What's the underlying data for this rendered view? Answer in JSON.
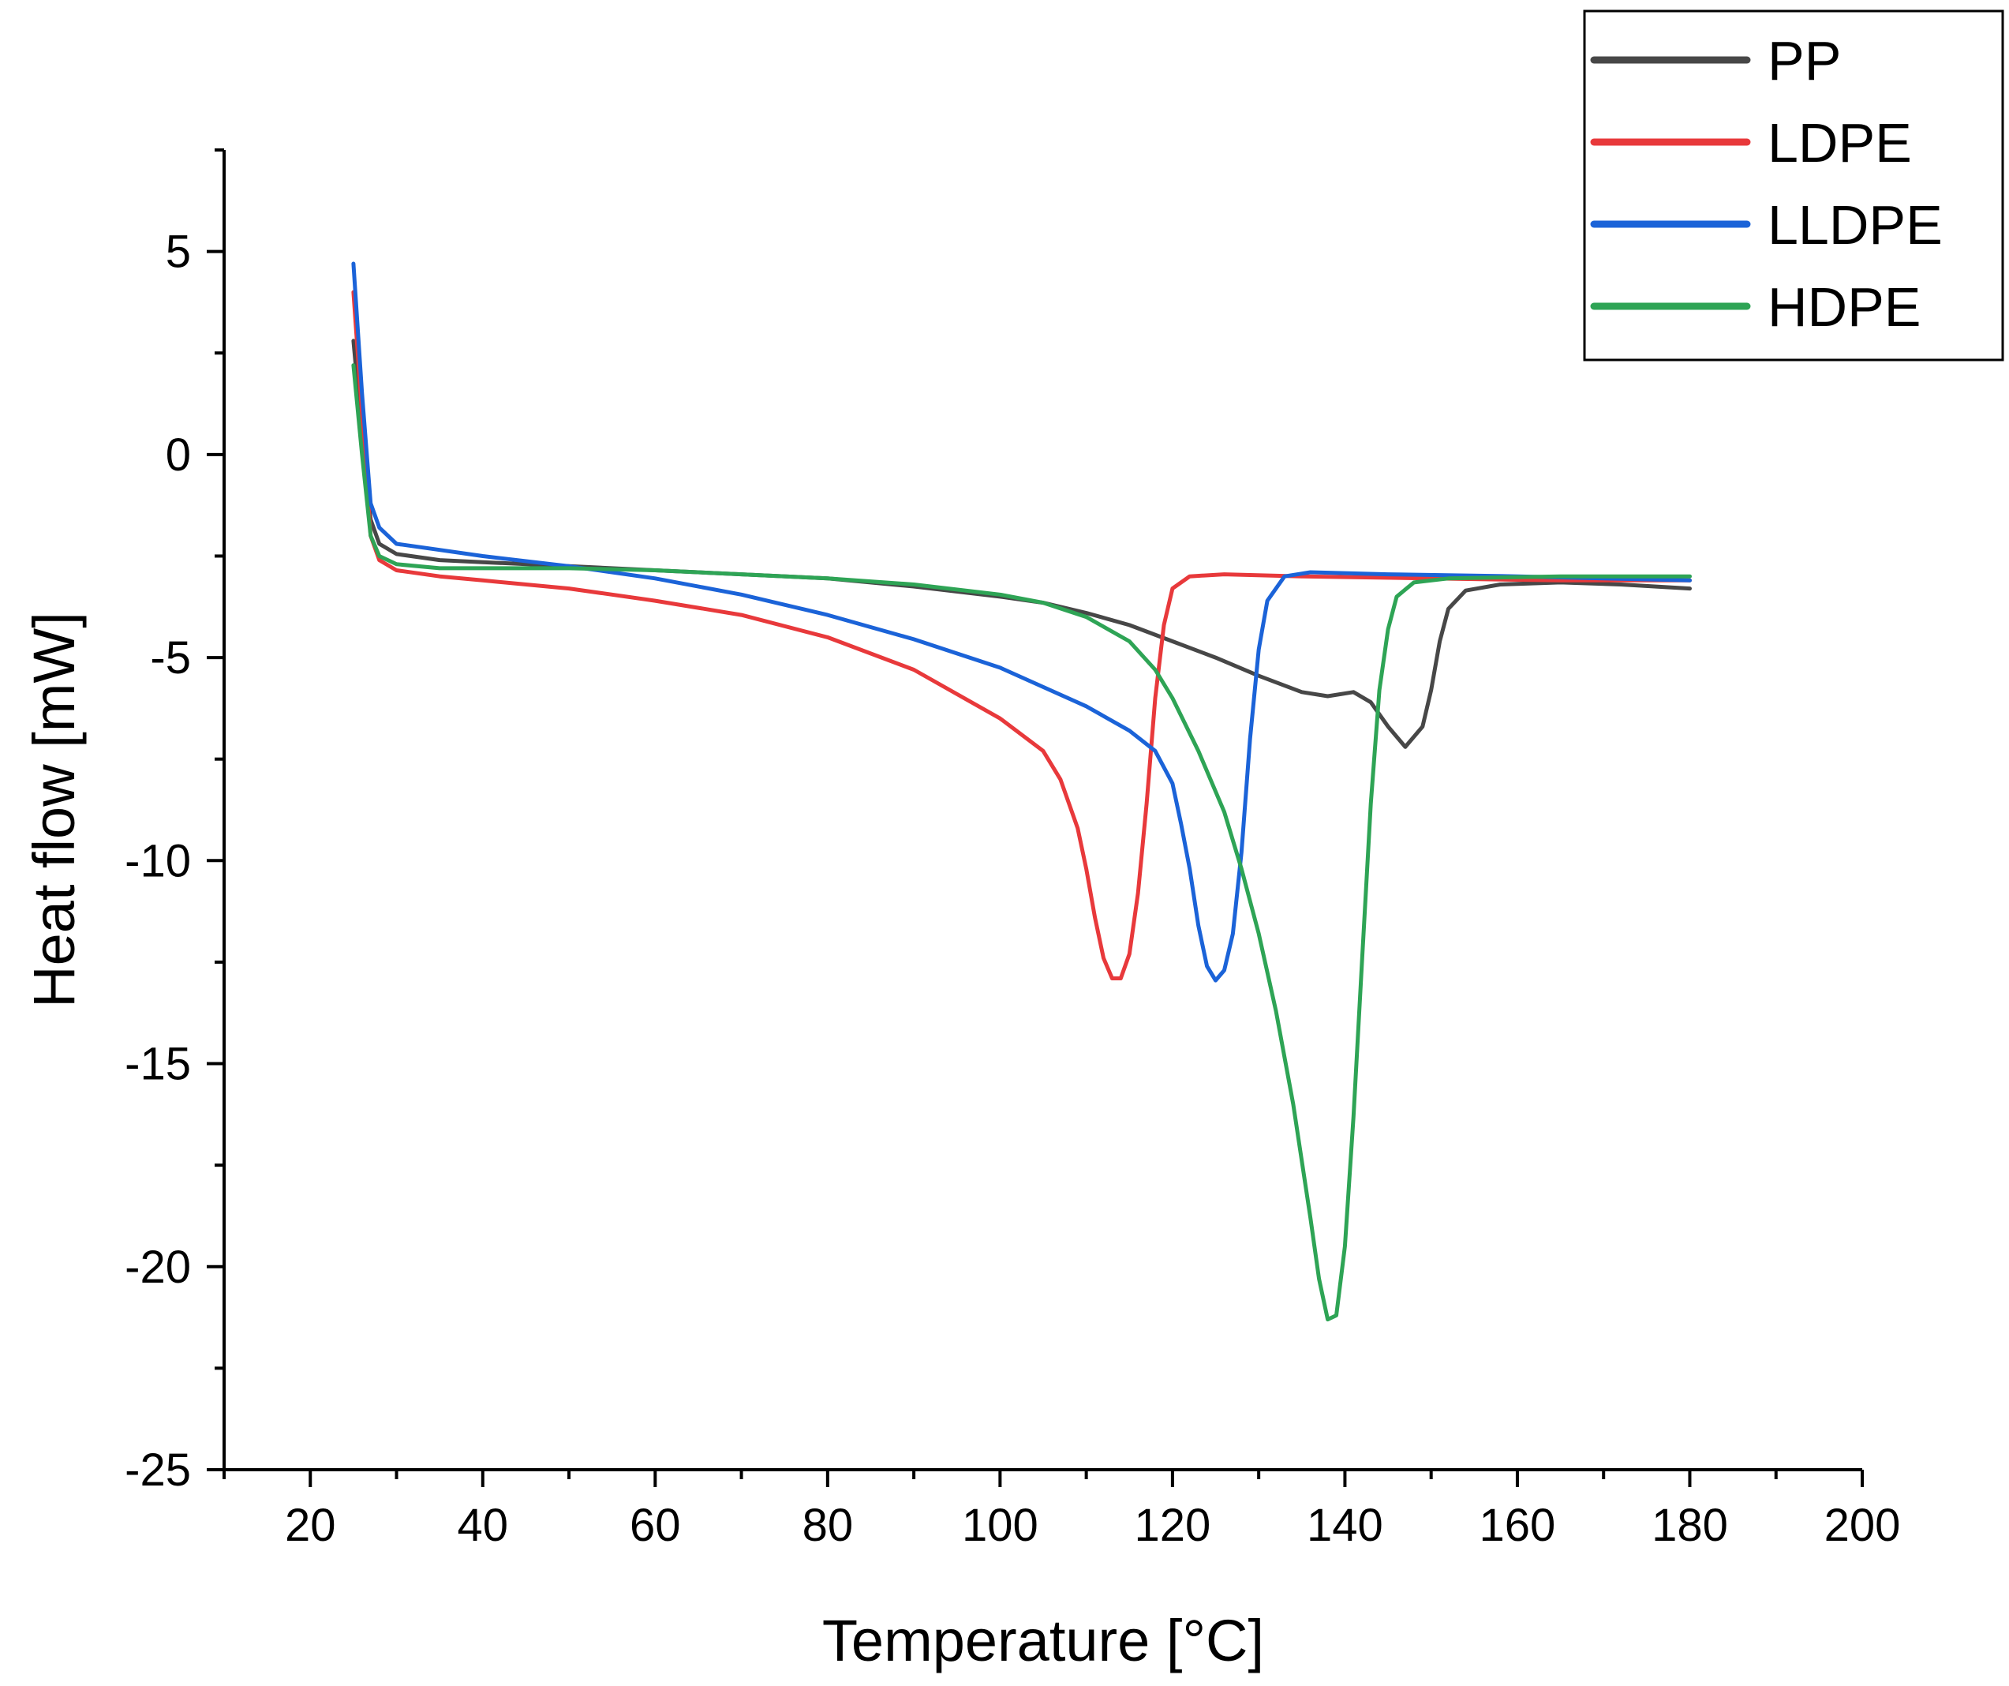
{
  "chart_data": {
    "type": "line",
    "title": "",
    "xlabel": "Temperature [°C]",
    "ylabel": "Heat flow [mW]",
    "xlim": [
      10,
      200
    ],
    "ylim": [
      -25,
      7.5
    ],
    "x_ticks": [
      20,
      40,
      60,
      80,
      100,
      120,
      140,
      160,
      180,
      200
    ],
    "y_ticks": [
      5,
      0,
      -5,
      -10,
      -15,
      -20,
      -25
    ],
    "grid": false,
    "legend_position": "top-right",
    "series": [
      {
        "name": "PP",
        "color": "#474747",
        "points": [
          [
            25,
            2.8
          ],
          [
            26,
            0.5
          ],
          [
            27,
            -1.6
          ],
          [
            28,
            -2.2
          ],
          [
            30,
            -2.45
          ],
          [
            35,
            -2.6
          ],
          [
            40,
            -2.65
          ],
          [
            50,
            -2.75
          ],
          [
            60,
            -2.85
          ],
          [
            70,
            -2.95
          ],
          [
            80,
            -3.05
          ],
          [
            90,
            -3.25
          ],
          [
            100,
            -3.5
          ],
          [
            105,
            -3.65
          ],
          [
            110,
            -3.9
          ],
          [
            115,
            -4.2
          ],
          [
            120,
            -4.6
          ],
          [
            125,
            -5.0
          ],
          [
            130,
            -5.45
          ],
          [
            135,
            -5.85
          ],
          [
            138,
            -5.95
          ],
          [
            141,
            -5.85
          ],
          [
            143,
            -6.1
          ],
          [
            145,
            -6.7
          ],
          [
            147,
            -7.2
          ],
          [
            149,
            -6.7
          ],
          [
            150,
            -5.8
          ],
          [
            151,
            -4.6
          ],
          [
            152,
            -3.8
          ],
          [
            154,
            -3.35
          ],
          [
            158,
            -3.2
          ],
          [
            165,
            -3.15
          ],
          [
            172,
            -3.2
          ],
          [
            180,
            -3.3
          ]
        ]
      },
      {
        "name": "LDPE",
        "color": "#e8393b",
        "points": [
          [
            25,
            4.0
          ],
          [
            26,
            1.0
          ],
          [
            27,
            -2.0
          ],
          [
            28,
            -2.6
          ],
          [
            30,
            -2.85
          ],
          [
            35,
            -3.0
          ],
          [
            40,
            -3.1
          ],
          [
            50,
            -3.3
          ],
          [
            60,
            -3.6
          ],
          [
            70,
            -3.95
          ],
          [
            80,
            -4.5
          ],
          [
            90,
            -5.3
          ],
          [
            100,
            -6.5
          ],
          [
            105,
            -7.3
          ],
          [
            107,
            -8.0
          ],
          [
            109,
            -9.2
          ],
          [
            110,
            -10.2
          ],
          [
            111,
            -11.4
          ],
          [
            112,
            -12.4
          ],
          [
            113,
            -12.9
          ],
          [
            114,
            -12.9
          ],
          [
            115,
            -12.3
          ],
          [
            116,
            -10.8
          ],
          [
            117,
            -8.6
          ],
          [
            118,
            -6.0
          ],
          [
            119,
            -4.2
          ],
          [
            120,
            -3.3
          ],
          [
            122,
            -3.0
          ],
          [
            126,
            -2.95
          ],
          [
            135,
            -3.0
          ],
          [
            150,
            -3.05
          ],
          [
            165,
            -3.1
          ],
          [
            180,
            -3.1
          ]
        ]
      },
      {
        "name": "LLDPE",
        "color": "#1b63d8",
        "points": [
          [
            25,
            4.7
          ],
          [
            26,
            1.5
          ],
          [
            27,
            -1.2
          ],
          [
            28,
            -1.8
          ],
          [
            30,
            -2.2
          ],
          [
            35,
            -2.35
          ],
          [
            40,
            -2.5
          ],
          [
            50,
            -2.75
          ],
          [
            60,
            -3.05
          ],
          [
            70,
            -3.45
          ],
          [
            80,
            -3.95
          ],
          [
            90,
            -4.55
          ],
          [
            100,
            -5.25
          ],
          [
            110,
            -6.2
          ],
          [
            115,
            -6.8
          ],
          [
            118,
            -7.3
          ],
          [
            120,
            -8.1
          ],
          [
            121,
            -9.1
          ],
          [
            122,
            -10.2
          ],
          [
            123,
            -11.6
          ],
          [
            124,
            -12.6
          ],
          [
            125,
            -12.95
          ],
          [
            126,
            -12.7
          ],
          [
            127,
            -11.8
          ],
          [
            128,
            -9.8
          ],
          [
            129,
            -7.0
          ],
          [
            130,
            -4.8
          ],
          [
            131,
            -3.6
          ],
          [
            133,
            -3.0
          ],
          [
            136,
            -2.9
          ],
          [
            145,
            -2.95
          ],
          [
            160,
            -3.0
          ],
          [
            170,
            -3.05
          ],
          [
            180,
            -3.1
          ]
        ]
      },
      {
        "name": "HDPE",
        "color": "#2ea455",
        "points": [
          [
            25,
            2.2
          ],
          [
            26,
            0.0
          ],
          [
            27,
            -2.0
          ],
          [
            28,
            -2.5
          ],
          [
            30,
            -2.7
          ],
          [
            35,
            -2.8
          ],
          [
            40,
            -2.8
          ],
          [
            50,
            -2.8
          ],
          [
            60,
            -2.85
          ],
          [
            70,
            -2.95
          ],
          [
            80,
            -3.05
          ],
          [
            90,
            -3.2
          ],
          [
            100,
            -3.45
          ],
          [
            105,
            -3.65
          ],
          [
            110,
            -4.0
          ],
          [
            115,
            -4.6
          ],
          [
            118,
            -5.3
          ],
          [
            120,
            -6.0
          ],
          [
            123,
            -7.3
          ],
          [
            126,
            -8.8
          ],
          [
            128,
            -10.2
          ],
          [
            130,
            -11.8
          ],
          [
            132,
            -13.7
          ],
          [
            134,
            -16.0
          ],
          [
            136,
            -18.8
          ],
          [
            137,
            -20.3
          ],
          [
            138,
            -21.3
          ],
          [
            139,
            -21.2
          ],
          [
            140,
            -19.5
          ],
          [
            141,
            -16.3
          ],
          [
            142,
            -12.4
          ],
          [
            143,
            -8.6
          ],
          [
            144,
            -5.8
          ],
          [
            145,
            -4.3
          ],
          [
            146,
            -3.5
          ],
          [
            148,
            -3.15
          ],
          [
            152,
            -3.05
          ],
          [
            165,
            -3.0
          ],
          [
            180,
            -3.0
          ]
        ]
      }
    ]
  }
}
